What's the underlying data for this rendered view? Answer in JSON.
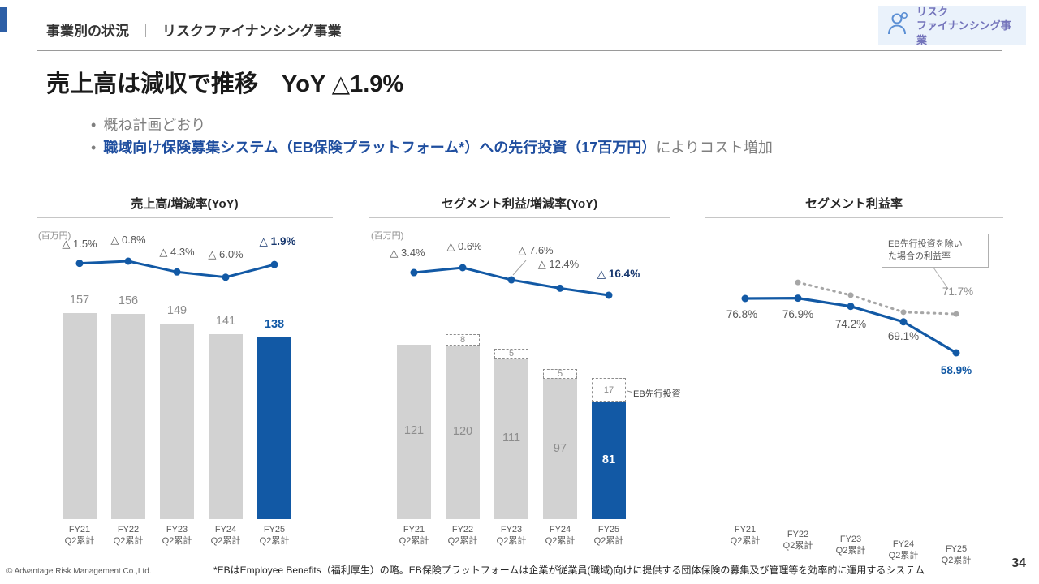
{
  "header": {
    "section_title": "事業別の状況",
    "separator": "｜",
    "section_subtitle": "リスクファイナンシング事業",
    "badge": {
      "icon": "person-icon",
      "line1": "リスク",
      "line2": "ファイナンシング事業"
    }
  },
  "title": "売上高は減収で推移　YoY △1.9%",
  "bullets": [
    {
      "marker": "•",
      "text": "概ね計画どおり"
    },
    {
      "marker": "•",
      "highlight": "職域向け保険募集システム（EB保険プラットフォーム*）への先行投資（17百万円）",
      "rest": "によりコスト増加"
    }
  ],
  "colors": {
    "brand_blue": "#1259a5",
    "bar_gray": "#d2d2d2",
    "text_gray": "#8c8c8c",
    "bullet_blue": "#1f4e9f",
    "dark_navy": "#17376e",
    "badge_bg": "#eaf2fb",
    "badge_text": "#7474bb",
    "dotted_gray": "#a6a6a6"
  },
  "chart_data": [
    {
      "type": "bar",
      "title": "売上高/増減率(YoY)",
      "unit": "(百万円)",
      "categories": [
        "FY21",
        "FY22",
        "FY23",
        "FY24",
        "FY25"
      ],
      "category_sub": "Q2累計",
      "ylim": [
        0,
        170
      ],
      "bars": {
        "name": "売上高(百万円)",
        "values": [
          157,
          156,
          149,
          141,
          138
        ],
        "highlight_index": 4
      },
      "line": {
        "name": "増減率(YoY)",
        "values_pct": [
          -1.5,
          -0.8,
          -4.3,
          -6.0,
          -1.9
        ],
        "labels": [
          "△ 1.5%",
          "△ 0.8%",
          "△ 4.3%",
          "△ 6.0%",
          "△ 1.9%"
        ],
        "highlight_index": 4
      }
    },
    {
      "type": "bar",
      "title": "セグメント利益/増減率(YoY)",
      "unit": "(百万円)",
      "categories": [
        "FY21",
        "FY22",
        "FY23",
        "FY24",
        "FY25"
      ],
      "category_sub": "Q2累計",
      "ylim": [
        0,
        140
      ],
      "bars": {
        "name": "セグメント利益(百万円)",
        "values": [
          121,
          120,
          111,
          97,
          81
        ],
        "highlight_index": 4
      },
      "dashed_addon": {
        "name": "EB先行投資",
        "values": [
          null,
          8,
          5,
          5,
          17
        ],
        "callout_label": "EB先行投資",
        "callout_index": 4
      },
      "line": {
        "name": "増減率(YoY)",
        "values_pct": [
          -3.4,
          -0.6,
          -7.6,
          -12.4,
          -16.4
        ],
        "labels": [
          "△ 3.4%",
          "△ 0.6%",
          "△ 7.6%",
          "△ 12.4%",
          "△ 16.4%"
        ],
        "highlight_index": 4
      }
    },
    {
      "type": "line",
      "title": "セグメント利益率",
      "categories": [
        "FY21",
        "FY22",
        "FY23",
        "FY24",
        "FY25"
      ],
      "category_sub": "Q2累計",
      "series": [
        {
          "name": "セグメント利益率",
          "style": "solid_blue",
          "values_pct": [
            76.8,
            76.9,
            74.2,
            69.1,
            58.9
          ],
          "labels": [
            "76.8%",
            "76.9%",
            "74.2%",
            "69.1%",
            "58.9%"
          ],
          "highlight_index": 4
        },
        {
          "name": "EB先行投資を除いた場合の利益率",
          "style": "dotted_gray",
          "values_pct": [
            null,
            82.1,
            77.9,
            72.3,
            71.7
          ],
          "labels": [
            null,
            null,
            null,
            null,
            "71.7%"
          ]
        }
      ],
      "annotation": {
        "text_line1": "EB先行投資を除い",
        "text_line2": "た場合の利益率"
      }
    }
  ],
  "footer": {
    "copyright": "© Advantage Risk Management Co.,Ltd.",
    "footnote": "*EBはEmployee Benefits（福利厚生）の略。EB保険プラットフォームは企業が従業員(職域)向けに提供する団体保険の募集及び管理等を効率的に運用するシステム",
    "page_number": "34"
  }
}
